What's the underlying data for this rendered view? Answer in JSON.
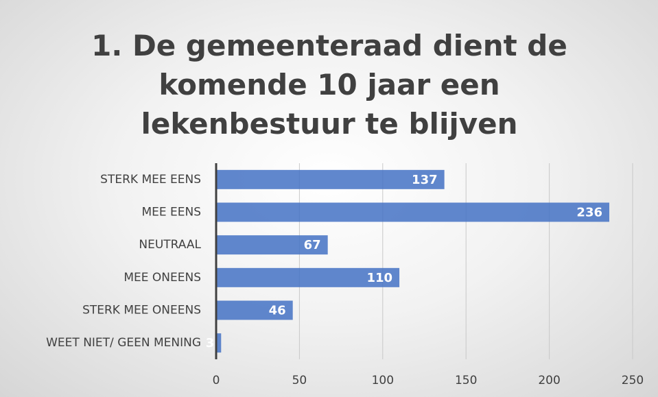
{
  "chart_data": {
    "type": "bar",
    "orientation": "horizontal",
    "title": "1. De gemeenteraad dient de komende 10 jaar een lekenbestuur te blijven",
    "categories": [
      "STERK MEE EENS",
      "MEE EENS",
      "NEUTRAAL",
      "MEE ONEENS",
      "STERK MEE ONEENS",
      "WEET NIET/ GEEN MENING"
    ],
    "values": [
      137,
      236,
      67,
      110,
      46,
      3
    ],
    "color": "#4472c4",
    "xlim": [
      0,
      250
    ],
    "xticks": [
      0,
      50,
      100,
      150,
      200,
      250
    ],
    "grid": true
  }
}
